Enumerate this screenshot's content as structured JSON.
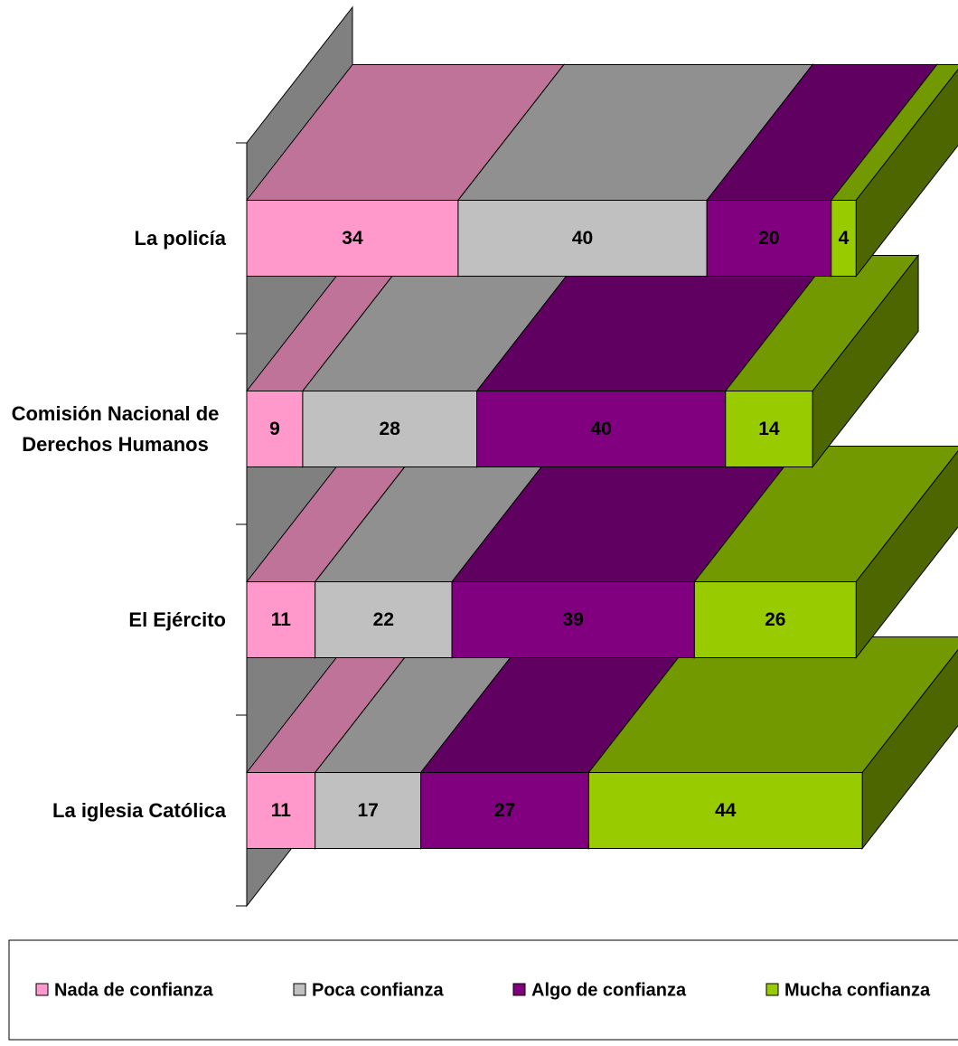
{
  "chart_data": {
    "type": "bar3d_stacked_horizontal",
    "categories": [
      "La policía",
      "Comisión Nacional de Derechos Humanos",
      "El Ejército",
      "La iglesia Católica"
    ],
    "series": [
      {
        "name": "Nada de confianza",
        "color": "#ff99cc",
        "values": [
          34,
          9,
          11,
          11
        ]
      },
      {
        "name": "Poca confianza",
        "color": "#c0c0c0",
        "values": [
          40,
          28,
          22,
          17
        ]
      },
      {
        "name": "Algo de confianza",
        "color": "#800080",
        "values": [
          20,
          40,
          39,
          27
        ]
      },
      {
        "name": "Mucha confianza",
        "color": "#99cc00",
        "values": [
          4,
          14,
          26,
          44
        ]
      }
    ],
    "legend": "bottom"
  }
}
